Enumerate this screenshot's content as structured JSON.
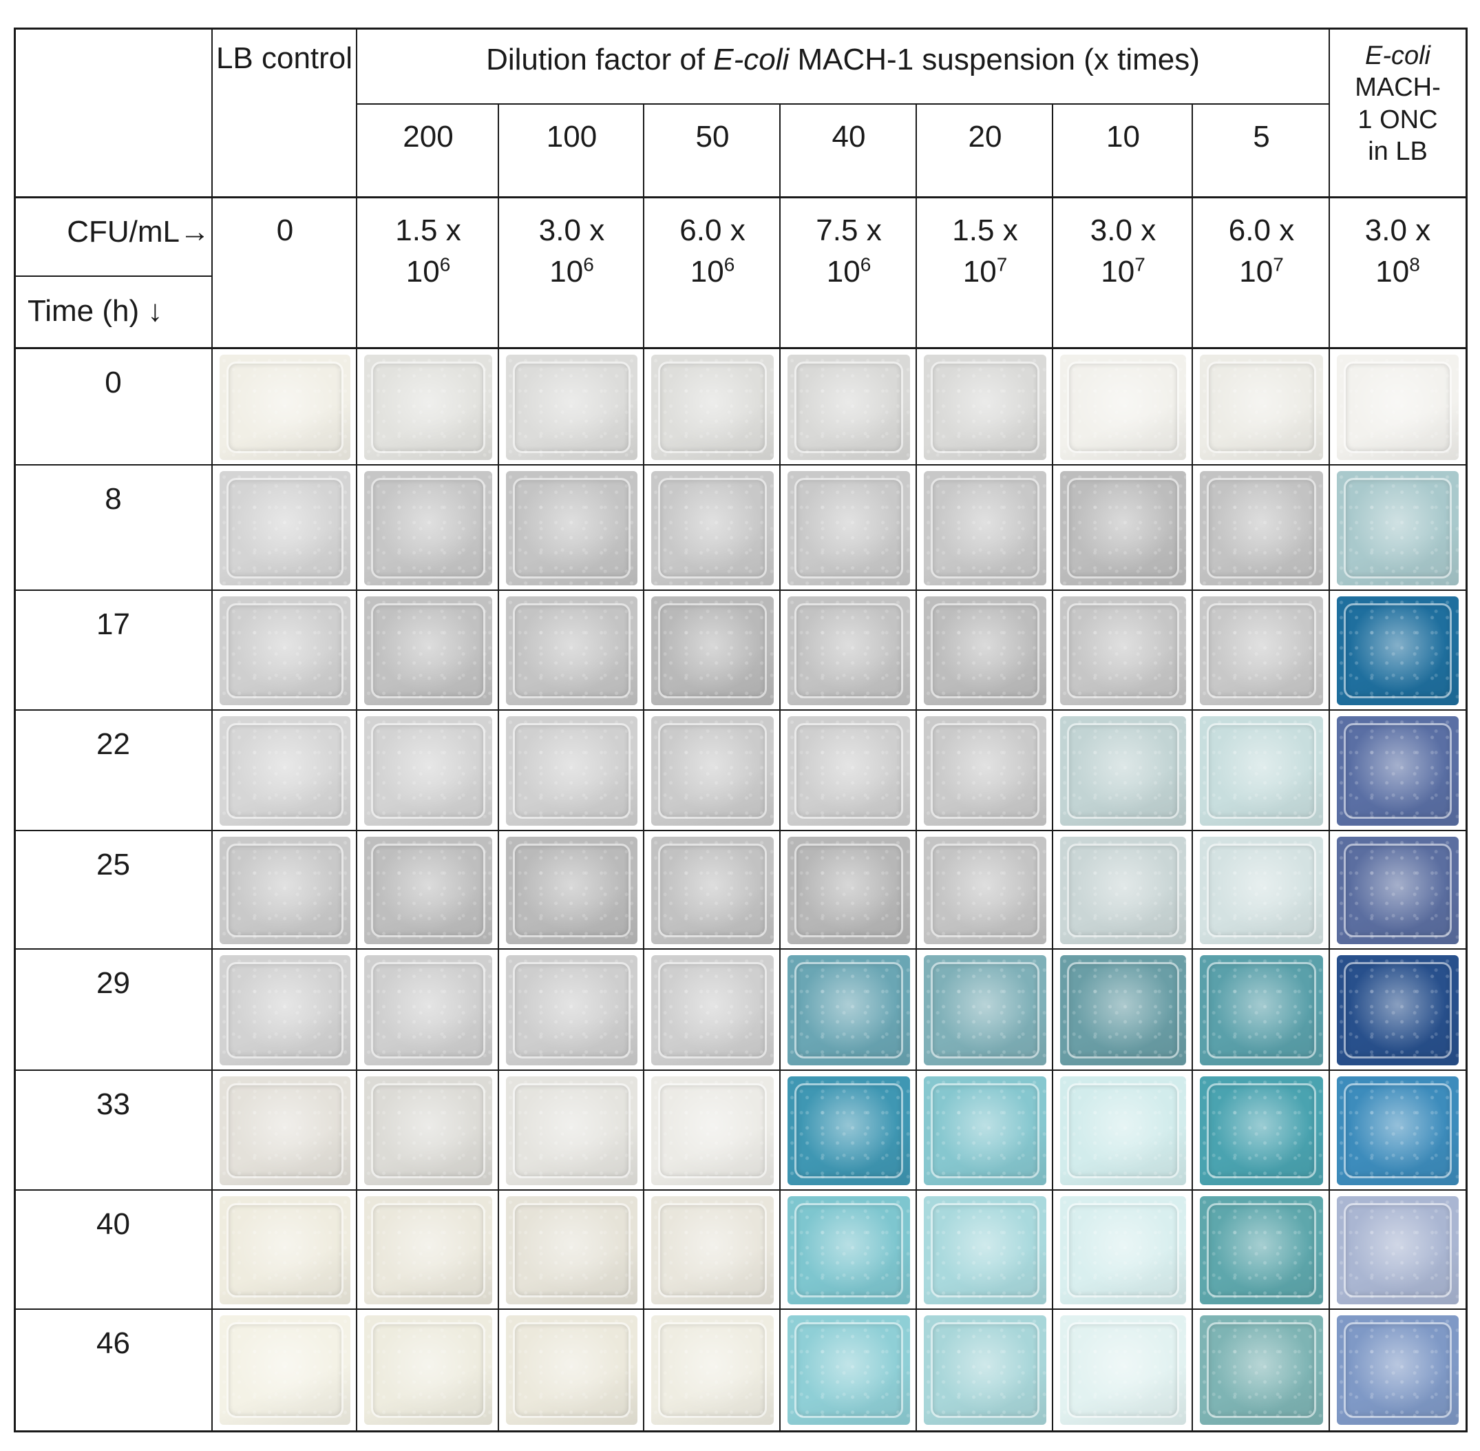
{
  "header": {
    "lb_control": "LB control",
    "dilution_title_pre": "Dilution factor of ",
    "dilution_title_organism": "E-coli",
    "dilution_title_post": " MACH-1 suspension  (x times)",
    "onc_line1": "E-coli",
    "onc_line2": "MACH-",
    "onc_line3": "1 ONC",
    "onc_line4": "in LB",
    "dilutions": [
      "200",
      "100",
      "50",
      "40",
      "20",
      "10",
      "5"
    ],
    "cfu_label": "CFU/mL",
    "time_label": "Time (h)"
  },
  "cfu_values": [
    {
      "base": "0",
      "exp": ""
    },
    {
      "base": "1.5 x 10",
      "exp": "6"
    },
    {
      "base": "3.0 x 10",
      "exp": "6"
    },
    {
      "base": "6.0 x 10",
      "exp": "6"
    },
    {
      "base": "7.5 x 10",
      "exp": "6"
    },
    {
      "base": "1.5 x 10",
      "exp": "7"
    },
    {
      "base": "3.0 x 10",
      "exp": "7"
    },
    {
      "base": "6.0 x 10",
      "exp": "7"
    },
    {
      "base": "3.0 x 10",
      "exp": "8"
    }
  ],
  "times": [
    "0",
    "8",
    "17",
    "22",
    "25",
    "29",
    "33",
    "40",
    "46"
  ],
  "tile_colors": [
    [
      "#f1efe6",
      "#e2e2de",
      "#dcdcda",
      "#dededb",
      "#d9d9d7",
      "#dadad8",
      "#f2f1ec",
      "#edece6",
      "#f3f2ee"
    ],
    [
      "#d4d4d4",
      "#c6c6c6",
      "#c4c4c4",
      "#c8c8c8",
      "#c9c9c9",
      "#c8c8c8",
      "#bdbdbd",
      "#c3c3c3",
      "#a9c9cc"
    ],
    [
      "#cfcfcf",
      "#c1c1c1",
      "#c4c4c4",
      "#b9b9b9",
      "#c3c3c3",
      "#bdbdbd",
      "#c6c6c6",
      "#c8c8c8",
      "#1f6f9e"
    ],
    [
      "#d6d6d6",
      "#d3d3d3",
      "#d0d0d0",
      "#cbcbcb",
      "#cfcfcf",
      "#cacaca",
      "#c2d4d4",
      "#c8dede",
      "#5a6fa4"
    ],
    [
      "#c9c9c9",
      "#bebebe",
      "#bababa",
      "#c2c2c2",
      "#b7b7b7",
      "#c4c4c4",
      "#cad6d6",
      "#d4e2e2",
      "#5b6ea0"
    ],
    [
      "#d2d2d2",
      "#cfcfcf",
      "#cecece",
      "#cfcfcf",
      "#6aa6b4",
      "#7fb0b8",
      "#6a9ea6",
      "#5aa0aa",
      "#28508c"
    ],
    [
      "#e4e1da",
      "#dcdbd6",
      "#e5e4df",
      "#ecebe6",
      "#3f97b3",
      "#86c7cf",
      "#d2ecec",
      "#4aa3b0",
      "#3d8cbc"
    ],
    [
      "#efecdf",
      "#ebe8dc",
      "#e6e3d8",
      "#e9e6dc",
      "#7ec6cf",
      "#a9d9dd",
      "#d9efef",
      "#5ea7ac",
      "#aab6d2"
    ],
    [
      "#f4f2e6",
      "#eeecdf",
      "#ece9dc",
      "#efede2",
      "#8fcfd6",
      "#a8d6d9",
      "#e2f2f1",
      "#7eb4b4",
      "#7f99c6"
    ]
  ]
}
